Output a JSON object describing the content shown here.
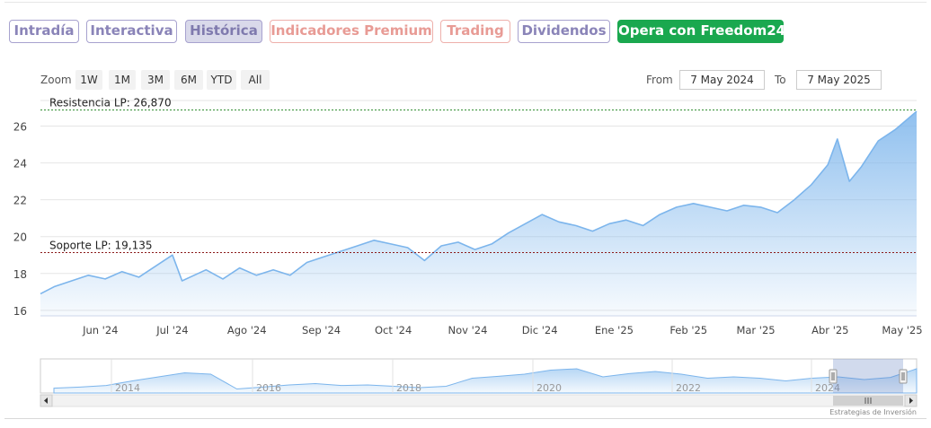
{
  "tabs": [
    {
      "label": "Intradía",
      "style": "purple"
    },
    {
      "label": "Interactiva",
      "style": "purple"
    },
    {
      "label": "Histórica",
      "style": "purple",
      "active": true
    },
    {
      "label": "Indicadores Premium",
      "style": "salmon"
    },
    {
      "label": "Trading",
      "style": "salmon"
    },
    {
      "label": "Dividendos",
      "style": "purple"
    },
    {
      "label": "Opera con Freedom24",
      "style": "green"
    }
  ],
  "zoom": {
    "label": "Zoom",
    "buttons": [
      "1W",
      "1M",
      "3M",
      "6M",
      "YTD",
      "All"
    ]
  },
  "range": {
    "from_label": "From",
    "from_value": "7 May 2024",
    "to_label": "To",
    "to_value": "7 May 2025"
  },
  "colors": {
    "tab_purple": "#8a84b8",
    "tab_salmon": "#e89b95",
    "tab_green": "#1aa84f",
    "series_line": "#7cb5ec",
    "resistance_line": "#2a8a2a",
    "support_line": "#8b1a1a"
  },
  "chart_data": {
    "type": "area",
    "x_ticks": [
      "Jun '24",
      "Jul '24",
      "Ago '24",
      "Sep '24",
      "Oct '24",
      "Nov '24",
      "Dic '24",
      "Ene '25",
      "Feb '25",
      "Mar '25",
      "Abr '25",
      "May '25"
    ],
    "y_ticks": [
      16,
      18,
      20,
      22,
      24,
      26
    ],
    "ylim": [
      15.7,
      27.0
    ],
    "x_range": [
      "2024-05-07",
      "2025-05-07"
    ],
    "grid": true,
    "series": [
      {
        "points": [
          [
            "2024-05-07",
            16.9
          ],
          [
            "2024-05-13",
            17.3
          ],
          [
            "2024-05-20",
            17.6
          ],
          [
            "2024-05-27",
            17.9
          ],
          [
            "2024-06-03",
            17.7
          ],
          [
            "2024-06-10",
            18.1
          ],
          [
            "2024-06-17",
            17.8
          ],
          [
            "2024-06-24",
            18.4
          ],
          [
            "2024-07-01",
            19.0
          ],
          [
            "2024-07-05",
            17.6
          ],
          [
            "2024-07-10",
            17.9
          ],
          [
            "2024-07-15",
            18.2
          ],
          [
            "2024-07-22",
            17.7
          ],
          [
            "2024-07-29",
            18.3
          ],
          [
            "2024-08-05",
            17.9
          ],
          [
            "2024-08-12",
            18.2
          ],
          [
            "2024-08-19",
            17.9
          ],
          [
            "2024-08-26",
            18.6
          ],
          [
            "2024-09-02",
            18.9
          ],
          [
            "2024-09-09",
            19.2
          ],
          [
            "2024-09-16",
            19.5
          ],
          [
            "2024-09-23",
            19.8
          ],
          [
            "2024-09-30",
            19.6
          ],
          [
            "2024-10-07",
            19.4
          ],
          [
            "2024-10-14",
            18.7
          ],
          [
            "2024-10-21",
            19.5
          ],
          [
            "2024-10-28",
            19.7
          ],
          [
            "2024-11-04",
            19.3
          ],
          [
            "2024-11-11",
            19.6
          ],
          [
            "2024-11-18",
            20.2
          ],
          [
            "2024-11-25",
            20.7
          ],
          [
            "2024-12-02",
            21.2
          ],
          [
            "2024-12-09",
            20.8
          ],
          [
            "2024-12-16",
            20.6
          ],
          [
            "2024-12-23",
            20.3
          ],
          [
            "2024-12-30",
            20.7
          ],
          [
            "2025-01-06",
            20.9
          ],
          [
            "2025-01-13",
            20.6
          ],
          [
            "2025-01-20",
            21.2
          ],
          [
            "2025-01-27",
            21.6
          ],
          [
            "2025-02-03",
            21.8
          ],
          [
            "2025-02-10",
            21.6
          ],
          [
            "2025-02-17",
            21.4
          ],
          [
            "2025-02-24",
            21.7
          ],
          [
            "2025-03-03",
            21.6
          ],
          [
            "2025-03-10",
            21.3
          ],
          [
            "2025-03-17",
            22.0
          ],
          [
            "2025-03-24",
            22.8
          ],
          [
            "2025-03-31",
            23.9
          ],
          [
            "2025-04-04",
            25.3
          ],
          [
            "2025-04-09",
            23.0
          ],
          [
            "2025-04-14",
            23.8
          ],
          [
            "2025-04-21",
            25.2
          ],
          [
            "2025-04-28",
            25.8
          ],
          [
            "2025-05-07",
            26.8
          ]
        ]
      }
    ],
    "plot_lines": [
      {
        "label": "Resistencia LP: 26,870",
        "value": 26.87
      },
      {
        "label": "Soporte LP: 19,135",
        "value": 19.135
      }
    ],
    "navigator": {
      "year_labels": [
        "2014",
        "2016",
        "2018",
        "2020",
        "2022",
        "2024"
      ],
      "profile": [
        0.18,
        0.22,
        0.28,
        0.45,
        0.6,
        0.75,
        0.7,
        0.15,
        0.22,
        0.3,
        0.35,
        0.28,
        0.3,
        0.25,
        0.2,
        0.25,
        0.55,
        0.62,
        0.7,
        0.85,
        0.9,
        0.6,
        0.72,
        0.8,
        0.7,
        0.55,
        0.6,
        0.55,
        0.45,
        0.55,
        0.6,
        0.5,
        0.58,
        0.9
      ]
    },
    "credits": "Estrategias de Inversión"
  }
}
